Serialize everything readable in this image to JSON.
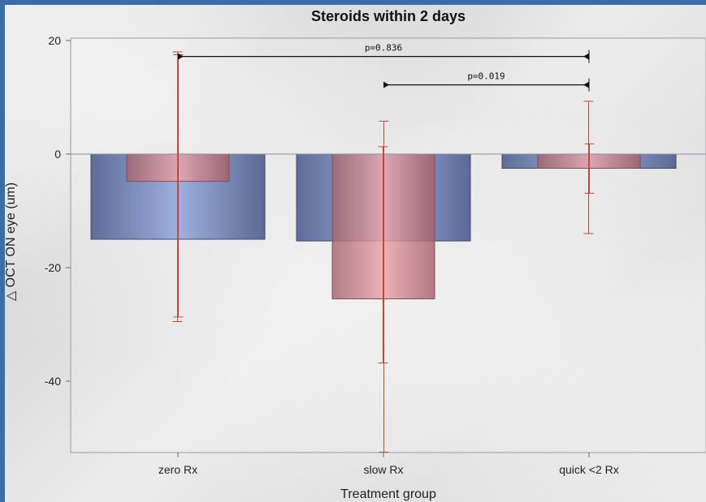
{
  "chart_data": {
    "type": "bar",
    "title": "Steroids within 2 days",
    "xlabel": "Treatment group",
    "ylabel": "△ OCT ON eye (um)",
    "categories": [
      "zero Rx",
      "slow Rx",
      "quick <2 Rx"
    ],
    "ylim": [
      -52.5,
      20.5
    ],
    "yticks": [
      20,
      0,
      -20,
      -40
    ],
    "ytick_labels": [
      "20",
      "0",
      "-20",
      "-40"
    ],
    "grid": false,
    "series": [
      {
        "color": "#8a9fd0",
        "values": [
          -15,
          -15.3,
          -2.5
        ],
        "error_low": [
          -29.5,
          -36.8,
          -14
        ],
        "error_high": [
          18,
          1.3,
          9.3
        ]
      },
      {
        "color": "#d98e95",
        "values": [
          -4.8,
          -25.5,
          -2.5
        ],
        "error_low": [
          -28.7,
          -52.5,
          -6.9
        ],
        "error_high": [
          17.5,
          5.8,
          1.8
        ]
      }
    ],
    "annotations": [
      {
        "text": "p=0.836",
        "from_category": 0,
        "to_category": 2,
        "y": 17.2
      },
      {
        "text": "p=0.019",
        "from_category": 1,
        "to_category": 2,
        "y": 12.2
      }
    ],
    "error_bar_color": "#c0492f",
    "zero_line_color": "#8a8f99"
  }
}
